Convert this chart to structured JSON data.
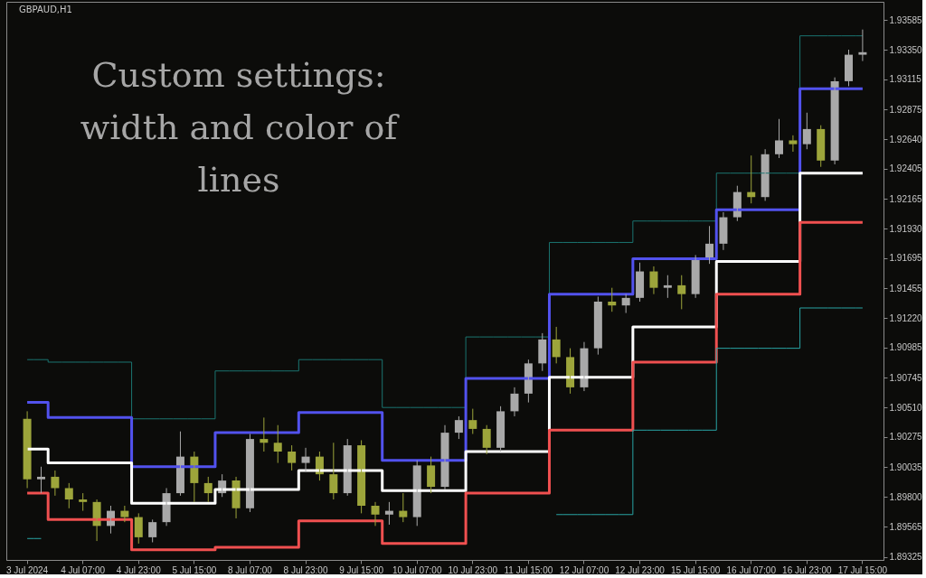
{
  "chart_data": {
    "type": "candlestick",
    "title": "GBPAUD,H1",
    "annotations": [
      "Custom settings: width and color of lines"
    ],
    "categories": [
      "3 Jul 2024",
      null,
      null,
      null,
      "4 Jul 07:00",
      null,
      null,
      null,
      "4 Jul 23:00",
      null,
      null,
      null,
      "5 Jul 15:00",
      null,
      null,
      null,
      "8 Jul 07:00",
      null,
      null,
      null,
      "8 Jul 23:00",
      null,
      null,
      null,
      "9 Jul 15:00",
      null,
      null,
      null,
      "10 Jul 07:00",
      null,
      null,
      null,
      "10 Jul 23:00",
      null,
      null,
      null,
      "11 Jul 15:00",
      null,
      null,
      null,
      "12 Jul 07:00",
      null,
      null,
      null,
      "12 Jul 23:00",
      null,
      null,
      null,
      "15 Jul 15:00",
      null,
      null,
      null,
      "16 Jul 07:00",
      null,
      null,
      null,
      "16 Jul 23:00",
      null,
      null,
      null,
      "17 Jul 15:00"
    ],
    "ohlc": [
      [
        1.9042,
        1.9048,
        1.8987,
        1.8994
      ],
      [
        1.8994,
        1.9004,
        1.8983,
        1.8996
      ],
      [
        1.8996,
        1.9001,
        1.8981,
        1.8987
      ],
      [
        1.8987,
        1.8991,
        1.8971,
        1.8978
      ],
      [
        1.8978,
        1.8983,
        1.8969,
        1.8976
      ],
      [
        1.8976,
        1.8978,
        1.8945,
        1.8957
      ],
      [
        1.8957,
        1.8973,
        1.8951,
        1.8969
      ],
      [
        1.8969,
        1.8973,
        1.896,
        1.8964
      ],
      [
        1.8964,
        1.8967,
        1.8943,
        1.8948
      ],
      [
        1.8948,
        1.8962,
        1.8944,
        1.896
      ],
      [
        1.896,
        1.8987,
        1.8957,
        1.8983
      ],
      [
        1.8983,
        1.9032,
        1.8981,
        1.9012
      ],
      [
        1.9012,
        1.9016,
        1.8976,
        1.8991
      ],
      [
        1.8991,
        1.8996,
        1.8976,
        1.8983
      ],
      [
        1.8983,
        1.8998,
        1.898,
        1.8993
      ],
      [
        1.8993,
        1.8996,
        1.8963,
        1.8971
      ],
      [
        1.8971,
        1.903,
        1.8968,
        1.9026
      ],
      [
        1.9026,
        1.9043,
        1.9016,
        1.9023
      ],
      [
        1.9023,
        1.9037,
        1.9007,
        1.9016
      ],
      [
        1.9016,
        1.9021,
        1.9001,
        1.9007
      ],
      [
        1.9007,
        1.9019,
        1.9,
        1.9012
      ],
      [
        1.9012,
        1.9016,
        1.8993,
        1.8998
      ],
      [
        1.8998,
        1.9023,
        1.8978,
        1.8983
      ],
      [
        1.8983,
        1.9026,
        1.8981,
        1.9021
      ],
      [
        1.9021,
        1.9025,
        1.8967,
        1.8973
      ],
      [
        1.8973,
        1.8976,
        1.8957,
        1.8966
      ],
      [
        1.8966,
        1.8976,
        1.8958,
        1.8969
      ],
      [
        1.8969,
        1.8983,
        1.896,
        1.8964
      ],
      [
        1.8964,
        1.9009,
        1.8957,
        1.9005
      ],
      [
        1.9005,
        1.9012,
        1.8983,
        1.8988
      ],
      [
        1.8988,
        1.9037,
        1.8986,
        1.9031
      ],
      [
        1.9031,
        1.9044,
        1.9026,
        1.9041
      ],
      [
        1.9041,
        1.905,
        1.903,
        1.9034
      ],
      [
        1.9034,
        1.9037,
        1.9014,
        1.9019
      ],
      [
        1.9019,
        1.9052,
        1.9016,
        1.9048
      ],
      [
        1.9048,
        1.9067,
        1.9044,
        1.9062
      ],
      [
        1.9062,
        1.9089,
        1.9055,
        1.9086
      ],
      [
        1.9086,
        1.911,
        1.908,
        1.9105
      ],
      [
        1.9105,
        1.9115,
        1.9086,
        1.9091
      ],
      [
        1.9091,
        1.9098,
        1.9062,
        1.9067
      ],
      [
        1.9067,
        1.9103,
        1.9064,
        1.9098
      ],
      [
        1.9098,
        1.9139,
        1.9093,
        1.9135
      ],
      [
        1.9135,
        1.9146,
        1.9127,
        1.9132
      ],
      [
        1.9132,
        1.9141,
        1.9126,
        1.9138
      ],
      [
        1.9138,
        1.9166,
        1.9135,
        1.9159
      ],
      [
        1.9159,
        1.9163,
        1.9141,
        1.9146
      ],
      [
        1.9146,
        1.9156,
        1.9138,
        1.9148
      ],
      [
        1.9148,
        1.9156,
        1.9129,
        1.9141
      ],
      [
        1.9141,
        1.9172,
        1.9138,
        1.9168
      ],
      [
        1.9168,
        1.9195,
        1.9165,
        1.9181
      ],
      [
        1.9181,
        1.9206,
        1.9176,
        1.9202
      ],
      [
        1.9202,
        1.9227,
        1.9199,
        1.9222
      ],
      [
        1.9222,
        1.9251,
        1.9213,
        1.9218
      ],
      [
        1.9218,
        1.9256,
        1.9215,
        1.9252
      ],
      [
        1.9252,
        1.928,
        1.9249,
        1.9263
      ],
      [
        1.9263,
        1.9267,
        1.9254,
        1.926
      ],
      [
        1.926,
        1.9285,
        1.9256,
        1.9272
      ],
      [
        1.9272,
        1.9275,
        1.9242,
        1.9247
      ],
      [
        1.9247,
        1.9313,
        1.9244,
        1.931
      ],
      [
        1.931,
        1.9335,
        1.9306,
        1.9331
      ],
      [
        1.9331,
        1.9351,
        1.9326,
        1.9333
      ]
    ],
    "colors": [
      "#9da53b",
      "#a9a9a9",
      "#9da53b",
      "#9da53b",
      "#9da53b",
      "#9da53b",
      "#a9a9a9",
      "#9da53b",
      "#9da53b",
      "#a9a9a9",
      "#a9a9a9",
      "#a9a9a9",
      "#9da53b",
      "#9da53b",
      "#a9a9a9",
      "#9da53b",
      "#a9a9a9",
      "#9da53b",
      "#9da53b",
      "#9da53b",
      "#a9a9a9",
      "#9da53b",
      "#9da53b",
      "#a9a9a9",
      "#9da53b",
      "#9da53b",
      "#a9a9a9",
      "#9da53b",
      "#a9a9a9",
      "#9da53b",
      "#a9a9a9",
      "#a9a9a9",
      "#9da53b",
      "#9da53b",
      "#a9a9a9",
      "#a9a9a9",
      "#a9a9a9",
      "#a9a9a9",
      "#9da53b",
      "#9da53b",
      "#a9a9a9",
      "#a9a9a9",
      "#9da53b",
      "#a9a9a9",
      "#a9a9a9",
      "#9da53b",
      "#a9a9a9",
      "#9da53b",
      "#a9a9a9",
      "#a9a9a9",
      "#a9a9a9",
      "#a9a9a9",
      "#9da53b",
      "#a9a9a9",
      "#a9a9a9",
      "#9da53b",
      "#a9a9a9",
      "#9da53b",
      "#a9a9a9",
      "#a9a9a9",
      "#a9a9a9"
    ],
    "series": [
      {
        "type": "step",
        "color": "#1b7571",
        "values": [
          1.9089,
          1.9089,
          1.9087,
          1.9087,
          1.9087,
          1.9087,
          1.9087,
          1.9087,
          1.9042,
          1.9042,
          1.9042,
          1.9042,
          1.9042,
          1.9042,
          1.908,
          1.908,
          1.908,
          1.908,
          1.908,
          1.908,
          1.9089,
          1.9089,
          1.9089,
          1.9089,
          1.9089,
          1.9089,
          1.9051,
          1.9051,
          1.9051,
          1.9051,
          1.9051,
          1.9051,
          1.9107,
          1.9107,
          1.9107,
          1.9107,
          1.9107,
          1.9107,
          1.9182,
          1.9182,
          1.9182,
          1.9182,
          1.9182,
          1.9182,
          1.9199,
          1.9199,
          1.9199,
          1.9199,
          1.9199,
          1.9199,
          1.9237,
          1.9237,
          1.9237,
          1.9237,
          1.9237,
          1.9237,
          1.9346,
          1.9346,
          1.9346,
          1.9346,
          1.9346
        ]
      },
      {
        "type": "step",
        "color": "#5252ee",
        "values": [
          1.9055,
          1.9055,
          1.9043,
          1.9043,
          1.9043,
          1.9043,
          1.9043,
          1.9043,
          1.9004,
          1.9004,
          1.9004,
          1.9004,
          1.9004,
          1.9004,
          1.9031,
          1.9031,
          1.9031,
          1.9031,
          1.9031,
          1.9031,
          1.9047,
          1.9047,
          1.9047,
          1.9047,
          1.9047,
          1.9047,
          1.9009,
          1.9009,
          1.9009,
          1.9009,
          1.9009,
          1.9009,
          1.9074,
          1.9074,
          1.9074,
          1.9074,
          1.9074,
          1.9074,
          1.9141,
          1.9141,
          1.9141,
          1.9141,
          1.9141,
          1.9141,
          1.9169,
          1.9169,
          1.9169,
          1.9169,
          1.9169,
          1.9169,
          1.9208,
          1.9208,
          1.9208,
          1.9208,
          1.9208,
          1.9208,
          1.9304,
          1.9304,
          1.9304,
          1.9304,
          1.9304
        ]
      },
      {
        "type": "step",
        "color": "#ffffff",
        "values": [
          1.9018,
          1.9018,
          1.9007,
          1.9007,
          1.9007,
          1.9007,
          1.9007,
          1.9007,
          1.8975,
          1.8975,
          1.8975,
          1.8975,
          1.8975,
          1.8975,
          1.8986,
          1.8986,
          1.8986,
          1.8986,
          1.8986,
          1.8986,
          1.9001,
          1.9001,
          1.9001,
          1.9001,
          1.9001,
          1.9001,
          1.8985,
          1.8985,
          1.8985,
          1.8985,
          1.8985,
          1.8985,
          1.9016,
          1.9016,
          1.9016,
          1.9016,
          1.9016,
          1.9016,
          1.9075,
          1.9075,
          1.9075,
          1.9075,
          1.9075,
          1.9075,
          1.9115,
          1.9115,
          1.9115,
          1.9115,
          1.9115,
          1.9115,
          1.9167,
          1.9167,
          1.9167,
          1.9167,
          1.9167,
          1.9167,
          1.9237,
          1.9237,
          1.9237,
          1.9237,
          1.9237
        ]
      },
      {
        "type": "step",
        "color": "#f05050",
        "values": [
          1.8983,
          1.8983,
          1.8962,
          1.8962,
          1.8962,
          1.8962,
          1.8962,
          1.8962,
          1.8938,
          1.8938,
          1.8938,
          1.8938,
          1.8938,
          1.8938,
          1.894,
          1.894,
          1.894,
          1.894,
          1.894,
          1.894,
          1.8961,
          1.8961,
          1.8961,
          1.8961,
          1.8961,
          1.8961,
          1.8943,
          1.8943,
          1.8943,
          1.8943,
          1.8943,
          1.8943,
          1.8983,
          1.8983,
          1.8983,
          1.8983,
          1.8983,
          1.8983,
          1.9033,
          1.9033,
          1.9033,
          1.9033,
          1.9033,
          1.9033,
          1.9087,
          1.9087,
          1.9087,
          1.9087,
          1.9087,
          1.9087,
          1.9141,
          1.9141,
          1.9141,
          1.9141,
          1.9141,
          1.9141,
          1.9198,
          1.9198,
          1.9198,
          1.9198,
          1.9198
        ]
      },
      {
        "type": "step",
        "color": "#29a5a5",
        "values": [
          1.8947,
          1.8947,
          null,
          null,
          null,
          null,
          null,
          null,
          null,
          null,
          null,
          null,
          null,
          null,
          null,
          null,
          null,
          null,
          null,
          null,
          null,
          null,
          null,
          null,
          null,
          null,
          null,
          null,
          null,
          null,
          null,
          null,
          null,
          null,
          null,
          null,
          null,
          null,
          1.8966,
          1.8966,
          1.8966,
          1.8966,
          1.8966,
          1.8966,
          1.9033,
          1.9033,
          1.9033,
          1.9033,
          1.9033,
          1.9033,
          1.9098,
          1.9098,
          1.9098,
          1.9098,
          1.9098,
          1.9098,
          1.913,
          1.913,
          1.913,
          1.913,
          1.913
        ]
      }
    ],
    "ylim": [
      1.893,
      1.9373
    ],
    "yticks": [
      1.89325,
      1.89565,
      {
        "value": 1.898,
        "label": "1.89800"
      },
      1.90035,
      1.90275,
      {
        "value": 1.9051,
        "label": "1.90510"
      },
      1.90745,
      1.90985,
      {
        "value": 1.9122,
        "label": "1.91220"
      },
      1.91455,
      1.91695,
      {
        "value": 1.9193,
        "label": "1.91930"
      },
      1.92165,
      1.92405,
      {
        "value": 1.9264,
        "label": "1.92640"
      },
      1.92875,
      1.93115,
      {
        "value": 1.9335,
        "label": "1.93350"
      },
      1.93585
    ],
    "grid": false
  }
}
